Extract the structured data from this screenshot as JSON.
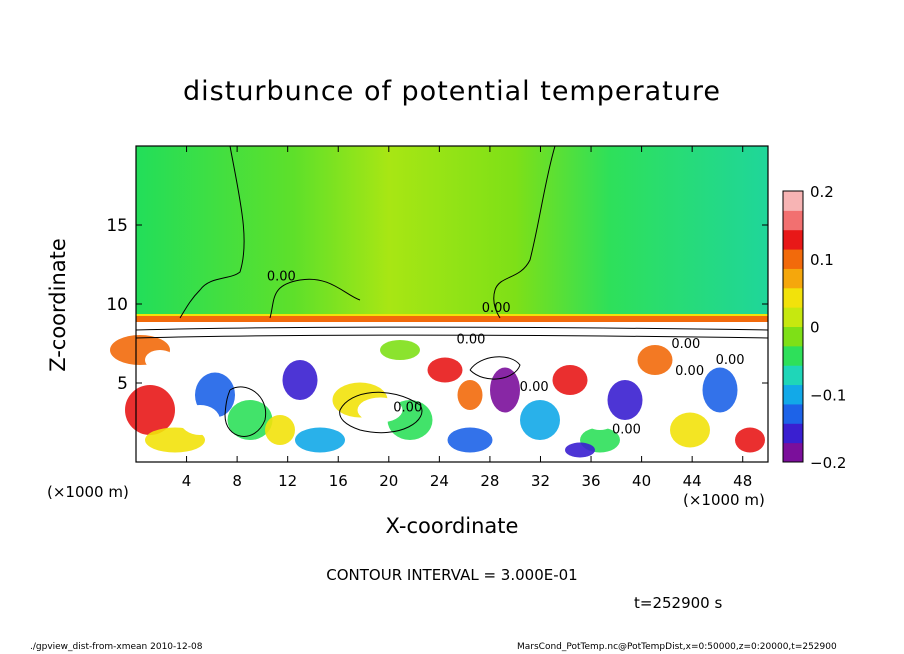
{
  "chart_data": {
    "type": "heatmap",
    "title": "disturbunce of potential temperature",
    "xlabel": "X-coordinate",
    "ylabel": "Z-coordinate",
    "x_unit_label": "(×1000 m)",
    "x_ticks": [
      4,
      8,
      12,
      16,
      20,
      24,
      28,
      32,
      36,
      40,
      44,
      48
    ],
    "y_ticks": [
      5,
      10,
      15
    ],
    "xlim": [
      0,
      50
    ],
    "ylim": [
      0,
      20
    ],
    "colorbar": {
      "ticks": [
        {
          "value": 0.2,
          "label": "0.2"
        },
        {
          "value": 0.1,
          "label": "0.1"
        },
        {
          "value": 0,
          "label": "0"
        },
        {
          "value": -0.1,
          "label": "−0.1"
        },
        {
          "value": -0.2,
          "label": "−0.2"
        }
      ],
      "range": [
        -0.2,
        0.2
      ],
      "colors": [
        "#7b0f9b",
        "#3a1fd0",
        "#1d63e8",
        "#12a9e8",
        "#1fd6b8",
        "#2ee05a",
        "#7ee017",
        "#c6e80f",
        "#f2e20b",
        "#f5a70c",
        "#f26a0b",
        "#e81818",
        "#f27070",
        "#f7b4b4"
      ]
    },
    "contour_labels": [
      {
        "x": 11.5,
        "y": 11.5,
        "text": "0.00"
      },
      {
        "x": 28.5,
        "y": 9.5,
        "text": "0.00"
      },
      {
        "x": 43.5,
        "y": 7.2,
        "text": "0.00"
      },
      {
        "x": 43.8,
        "y": 5.5,
        "text": "0.00"
      },
      {
        "x": 47.0,
        "y": 6.2,
        "text": "0.00"
      },
      {
        "x": 21.5,
        "y": 3.2,
        "text": "0.00"
      },
      {
        "x": 38.8,
        "y": 1.8,
        "text": "0.00"
      },
      {
        "x": 31.5,
        "y": 4.5,
        "text": "0.00"
      },
      {
        "x": 26.5,
        "y": 7.5,
        "text": "0.00"
      }
    ],
    "contour_interval": "CONTOUR INTERVAL = 3.000E-01",
    "time": "t=252900 s"
  },
  "footer": {
    "left": "./gpview_dist-from-xmean 2010-12-08",
    "right": "MarsCond_PotTemp.nc@PotTempDist,x=0:50000,z=0:20000,t=252900"
  }
}
